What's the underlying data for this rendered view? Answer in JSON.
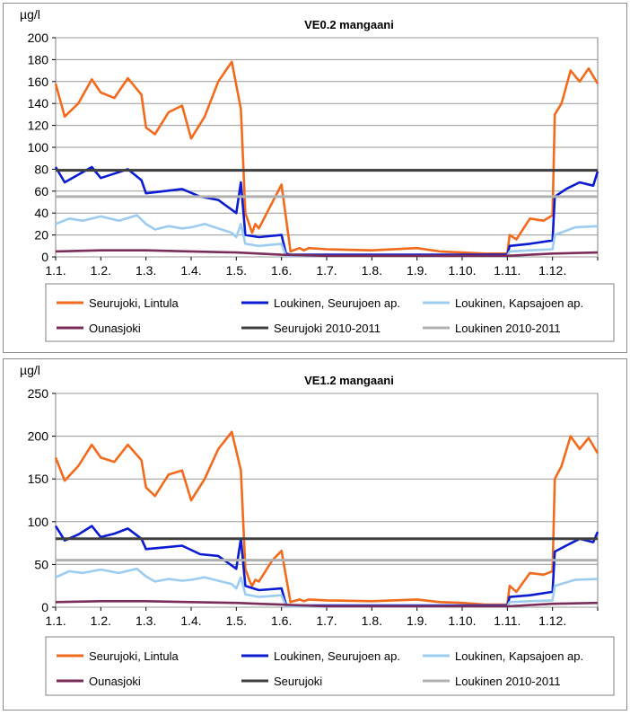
{
  "colors": {
    "seurujoki_lintula": "#f26a1b",
    "loukinen_seurujoen": "#0a1bd1",
    "loukinen_kapsajoen": "#9cccf0",
    "ounasjoki": "#7b2d5a",
    "ref_dark": "#404040",
    "ref_light": "#b0b0b0"
  },
  "chart_data": [
    {
      "type": "line",
      "title": "VE0.2 mangaani",
      "ylabel": "µg/l",
      "ylim": [
        0,
        200
      ],
      "yticks": [
        "0",
        "20",
        "40",
        "60",
        "80",
        "100",
        "120",
        "140",
        "160",
        "180",
        "200"
      ],
      "xticks": [
        "1.1.",
        "1.2.",
        "1.3.",
        "1.4.",
        "1.5.",
        "1.6.",
        "1.7.",
        "1.8.",
        "1.9.",
        "1.10.",
        "1.11.",
        "1.12."
      ],
      "legend_position": "bottom",
      "series": [
        {
          "name": "Seurujoki, Lintula",
          "color_key": "seurujoki_lintula",
          "x": [
            0,
            0.2,
            0.5,
            0.8,
            1.0,
            1.3,
            1.6,
            1.9,
            2.0,
            2.2,
            2.5,
            2.8,
            3.0,
            3.3,
            3.6,
            3.9,
            4.1,
            4.2,
            4.3,
            4.35,
            4.42,
            4.5,
            4.8,
            5.0,
            5.2,
            5.4,
            5.5,
            5.6,
            6.0,
            7.0,
            8.0,
            8.5,
            9.0,
            9.5,
            10.0,
            10.05,
            10.2,
            10.5,
            10.8,
            11.0,
            11.05,
            11.2,
            11.4,
            11.6,
            11.8,
            12.0
          ],
          "y": [
            158,
            128,
            140,
            162,
            150,
            145,
            163,
            148,
            118,
            112,
            132,
            138,
            108,
            128,
            160,
            178,
            135,
            40,
            28,
            22,
            30,
            26,
            50,
            66,
            5,
            8,
            6,
            8,
            7,
            6,
            8,
            5,
            4,
            3,
            3,
            20,
            16,
            35,
            33,
            38,
            130,
            140,
            170,
            160,
            172,
            158
          ]
        },
        {
          "name": "Loukinen, Seurujoen ap.",
          "color_key": "loukinen_seurujoen",
          "x": [
            0,
            0.2,
            0.5,
            0.8,
            1.0,
            1.3,
            1.6,
            1.9,
            2.0,
            2.4,
            2.8,
            3.2,
            3.6,
            4.0,
            4.1,
            4.2,
            4.5,
            5.0,
            5.1,
            5.2,
            6.0,
            7.0,
            8.0,
            9.0,
            10.0,
            10.05,
            10.5,
            11.0,
            11.05,
            11.3,
            11.6,
            11.9,
            12.0
          ],
          "y": [
            82,
            68,
            75,
            82,
            72,
            76,
            80,
            70,
            58,
            60,
            62,
            55,
            52,
            40,
            68,
            20,
            18,
            20,
            3,
            2,
            2,
            2,
            2,
            2,
            2,
            10,
            12,
            15,
            55,
            62,
            68,
            65,
            78
          ]
        },
        {
          "name": "Loukinen, Kapsajoen ap.",
          "color_key": "loukinen_kapsajoen",
          "x": [
            0,
            0.3,
            0.6,
            1.0,
            1.4,
            1.8,
            2.0,
            2.2,
            2.5,
            2.8,
            3.0,
            3.3,
            3.6,
            3.9,
            4.0,
            4.1,
            4.2,
            4.5,
            5.0,
            5.1,
            5.3,
            6.0,
            7.0,
            8.0,
            9.0,
            10.0,
            10.05,
            10.5,
            11.0,
            11.05,
            11.5,
            12.0
          ],
          "y": [
            30,
            35,
            33,
            37,
            33,
            38,
            30,
            25,
            28,
            26,
            27,
            30,
            26,
            22,
            18,
            30,
            12,
            10,
            12,
            1,
            1,
            1,
            1,
            1,
            1,
            1,
            5,
            6,
            7,
            20,
            27,
            28
          ]
        },
        {
          "name": "Ounasjoki",
          "color_key": "ounasjoki",
          "x": [
            0,
            1,
            2,
            3,
            4,
            4.5,
            5,
            6,
            8,
            10,
            11,
            12
          ],
          "y": [
            5,
            6,
            6,
            5,
            4,
            3,
            2,
            1,
            1,
            1,
            3,
            4
          ]
        },
        {
          "name": "Seurujoki 2010-2011",
          "color_key": "ref_dark",
          "x": [
            0,
            12
          ],
          "y": [
            79,
            79
          ]
        },
        {
          "name": "Loukinen 2010-2011",
          "color_key": "ref_light",
          "x": [
            0,
            12
          ],
          "y": [
            55,
            55
          ]
        }
      ]
    },
    {
      "type": "line",
      "title": "VE1.2 mangaani",
      "ylabel": "µg/l",
      "ylim": [
        0,
        250
      ],
      "yticks": [
        "0",
        "50",
        "100",
        "150",
        "200",
        "250"
      ],
      "xticks": [
        "1.1.",
        "1.2.",
        "1.3.",
        "1.4.",
        "1.5.",
        "1.6.",
        "1.7.",
        "1.8.",
        "1.9.",
        "1.10.",
        "1.11.",
        "1.12."
      ],
      "legend_position": "bottom",
      "series": [
        {
          "name": "Seurujoki, Lintula",
          "color_key": "seurujoki_lintula",
          "x": [
            0,
            0.2,
            0.5,
            0.8,
            1.0,
            1.3,
            1.6,
            1.9,
            2.0,
            2.2,
            2.5,
            2.8,
            3.0,
            3.3,
            3.6,
            3.9,
            4.1,
            4.2,
            4.3,
            4.35,
            4.42,
            4.5,
            4.8,
            5.0,
            5.2,
            5.4,
            5.5,
            5.6,
            6.0,
            7.0,
            8.0,
            8.5,
            9.0,
            9.5,
            10.0,
            10.05,
            10.2,
            10.5,
            10.8,
            11.0,
            11.05,
            11.2,
            11.4,
            11.6,
            11.8,
            12.0
          ],
          "y": [
            175,
            148,
            165,
            190,
            175,
            170,
            190,
            172,
            140,
            130,
            155,
            160,
            125,
            150,
            185,
            205,
            160,
            45,
            30,
            25,
            32,
            30,
            55,
            66,
            6,
            9,
            7,
            9,
            8,
            7,
            9,
            6,
            5,
            3,
            3,
            25,
            18,
            40,
            38,
            42,
            150,
            165,
            200,
            185,
            198,
            180
          ]
        },
        {
          "name": "Loukinen, Seurujoen ap.",
          "color_key": "loukinen_seurujoen",
          "x": [
            0,
            0.2,
            0.5,
            0.8,
            1.0,
            1.3,
            1.6,
            1.9,
            2.0,
            2.4,
            2.8,
            3.2,
            3.6,
            4.0,
            4.1,
            4.2,
            4.5,
            5.0,
            5.1,
            5.2,
            6.0,
            7.0,
            8.0,
            9.0,
            10.0,
            10.05,
            10.5,
            11.0,
            11.05,
            11.3,
            11.6,
            11.9,
            12.0
          ],
          "y": [
            95,
            78,
            85,
            95,
            82,
            86,
            92,
            80,
            68,
            70,
            72,
            62,
            60,
            45,
            80,
            25,
            20,
            22,
            3,
            2,
            2,
            2,
            2,
            2,
            2,
            12,
            14,
            18,
            65,
            72,
            80,
            76,
            88
          ]
        },
        {
          "name": "Loukinen, Kapsajoen ap.",
          "color_key": "loukinen_kapsajoen",
          "x": [
            0,
            0.3,
            0.6,
            1.0,
            1.4,
            1.8,
            2.0,
            2.2,
            2.5,
            2.8,
            3.0,
            3.3,
            3.6,
            3.9,
            4.0,
            4.1,
            4.2,
            4.5,
            5.0,
            5.1,
            5.3,
            6.0,
            7.0,
            8.0,
            9.0,
            10.0,
            10.05,
            10.5,
            11.0,
            11.05,
            11.5,
            12.0
          ],
          "y": [
            35,
            42,
            40,
            44,
            40,
            45,
            36,
            30,
            33,
            31,
            32,
            35,
            31,
            27,
            22,
            35,
            15,
            12,
            14,
            1,
            1,
            1,
            1,
            1,
            1,
            1,
            6,
            7,
            8,
            25,
            32,
            33
          ]
        },
        {
          "name": "Ounasjoki",
          "color_key": "ounasjoki",
          "x": [
            0,
            1,
            2,
            3,
            4,
            4.5,
            5,
            6,
            8,
            10,
            11,
            12
          ],
          "y": [
            6,
            7,
            7,
            6,
            5,
            4,
            3,
            1,
            1,
            1,
            4,
            5
          ]
        },
        {
          "name": "Seurujoki",
          "color_key": "ref_dark",
          "x": [
            0,
            12
          ],
          "y": [
            80,
            80
          ]
        },
        {
          "name": "Loukinen 2010-2011",
          "color_key": "ref_light",
          "x": [
            0,
            12
          ],
          "y": [
            55,
            55
          ]
        }
      ]
    }
  ]
}
